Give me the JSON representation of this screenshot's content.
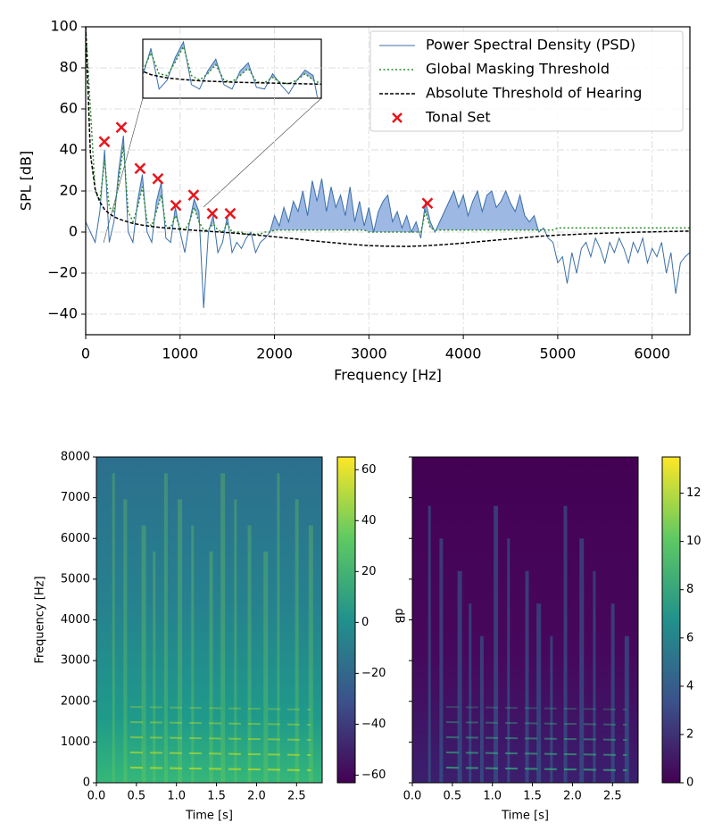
{
  "chart_data": [
    {
      "type": "line",
      "xlabel": "Frequency [Hz]",
      "ylabel": "SPL [dB]",
      "xlim": [
        0,
        6400
      ],
      "xticks": [
        0,
        1000,
        2000,
        3000,
        4000,
        5000,
        6000
      ],
      "ylim": [
        -50,
        100
      ],
      "yticks": [
        {
          "value": -40,
          "label": "−40"
        },
        {
          "value": -20,
          "label": "−20"
        },
        0,
        20,
        40,
        60,
        80,
        100
      ],
      "grid": true,
      "legend": "upper right",
      "fill_above_threshold_color": "#9db8e3",
      "x": [
        0,
        50,
        100,
        150,
        200,
        250,
        300,
        350,
        400,
        450,
        500,
        550,
        600,
        650,
        700,
        750,
        800,
        850,
        900,
        950,
        1000,
        1050,
        1100,
        1150,
        1200,
        1250,
        1300,
        1350,
        1400,
        1450,
        1500,
        1550,
        1600,
        1650,
        1700,
        1750,
        1800,
        1850,
        1900,
        1950,
        2000,
        2050,
        2100,
        2150,
        2200,
        2250,
        2300,
        2350,
        2400,
        2450,
        2500,
        2550,
        2600,
        2650,
        2700,
        2750,
        2800,
        2850,
        2900,
        2950,
        3000,
        3050,
        3100,
        3150,
        3200,
        3250,
        3300,
        3350,
        3400,
        3450,
        3500,
        3550,
        3600,
        3650,
        3700,
        3750,
        3800,
        3850,
        3900,
        3950,
        4000,
        4050,
        4100,
        4150,
        4200,
        4250,
        4300,
        4350,
        4400,
        4450,
        4500,
        4550,
        4600,
        4650,
        4700,
        4750,
        4800,
        4850,
        4900,
        4950,
        5000,
        5050,
        5100,
        5150,
        5200,
        5250,
        5300,
        5350,
        5400,
        5450,
        5500,
        5550,
        5600,
        5650,
        5700,
        5750,
        5800,
        5850,
        5900,
        5950,
        6000,
        6050,
        6100,
        6150,
        6200,
        6250,
        6300,
        6350,
        6400
      ],
      "series": [
        {
          "name": "Power Spectral Density (PSD)",
          "color": "#3b6fa8",
          "style": "solid",
          "values": [
            5,
            0,
            -5,
            10,
            40,
            -5,
            5,
            30,
            47,
            0,
            -5,
            15,
            28,
            0,
            -5,
            15,
            24,
            -3,
            -5,
            12,
            0,
            -10,
            5,
            16,
            10,
            -37,
            0,
            8,
            -10,
            -5,
            8,
            -10,
            -5,
            -8,
            -3,
            0,
            -10,
            -5,
            -3,
            0,
            8,
            3,
            12,
            5,
            15,
            10,
            20,
            8,
            25,
            15,
            26,
            10,
            22,
            12,
            18,
            8,
            22,
            5,
            15,
            3,
            12,
            0,
            10,
            15,
            18,
            5,
            10,
            2,
            8,
            0,
            5,
            -3,
            15,
            5,
            0,
            5,
            10,
            15,
            20,
            12,
            18,
            8,
            15,
            20,
            10,
            18,
            20,
            12,
            15,
            20,
            14,
            10,
            18,
            8,
            5,
            8,
            0,
            2,
            -3,
            -5,
            -15,
            -12,
            -25,
            -10,
            -20,
            -8,
            -5,
            -12,
            -3,
            -8,
            -15,
            -5,
            -10,
            -3,
            -8,
            -15,
            -5,
            -10,
            -3,
            -15,
            -8,
            -12,
            -5,
            -20,
            -10,
            -30,
            -15,
            -12,
            -10
          ]
        },
        {
          "name": "Global Masking Threshold",
          "color": "#2a8a2a",
          "style": "dotted",
          "values": [
            100,
            60,
            20,
            15,
            35,
            12,
            10,
            25,
            42,
            10,
            5,
            12,
            22,
            5,
            3,
            10,
            18,
            3,
            2,
            8,
            2,
            1,
            5,
            12,
            5,
            1,
            1,
            4,
            1,
            0,
            4,
            0,
            0,
            0,
            -1,
            -1,
            -1,
            -1,
            0,
            0,
            1,
            1,
            1,
            1,
            1,
            1,
            1,
            1,
            1,
            1,
            1,
            1,
            1,
            1,
            1,
            1,
            1,
            1,
            1,
            1,
            0,
            0,
            0,
            0,
            0,
            0,
            0,
            0,
            0,
            0,
            0,
            0,
            10,
            2,
            1,
            1,
            1,
            1,
            1,
            1,
            1,
            1,
            1,
            1,
            1,
            1,
            1,
            1,
            1,
            1,
            1,
            1,
            1,
            1,
            1,
            1,
            1,
            1,
            1,
            1,
            2,
            2,
            2,
            2,
            2,
            2,
            2,
            2,
            2,
            2,
            2,
            2,
            2,
            2,
            2,
            2,
            2,
            2,
            2,
            2,
            2,
            2,
            2,
            2,
            2,
            2,
            2,
            2,
            2
          ]
        },
        {
          "name": "Absolute Threshold of Hearing",
          "color": "#000000",
          "style": "dashed",
          "x": [
            0,
            50,
            100,
            150,
            200,
            250,
            300,
            350,
            400,
            500,
            600,
            700,
            800,
            900,
            1000,
            1200,
            1400,
            1600,
            1800,
            2000,
            2200,
            2400,
            2600,
            2800,
            3000,
            3200,
            3400,
            3600,
            3800,
            4000,
            4200,
            4400,
            4600,
            4800,
            5000,
            5200,
            5400,
            5600,
            5800,
            6000,
            6200,
            6400
          ],
          "values": [
            100,
            38,
            21,
            14.6,
            11,
            9,
            7.5,
            6.4,
            5.6,
            4.2,
            3.4,
            2.7,
            2.2,
            1.8,
            1.4,
            0.7,
            0.1,
            -0.6,
            -1.4,
            -2.3,
            -3.2,
            -4.2,
            -5.1,
            -5.9,
            -6.6,
            -6.9,
            -7,
            -6.7,
            -6.1,
            -5.4,
            -4.5,
            -3.7,
            -2.9,
            -2.1,
            -1.5,
            -1.1,
            -0.7,
            -0.4,
            -0.1,
            0.1,
            0.3,
            0.5
          ]
        },
        {
          "name": "Tonal Set",
          "color": "#e8151b",
          "marker": "x",
          "x": [
            198,
            378,
            576,
            765,
            955,
            1143,
            1342,
            1531,
            3620
          ],
          "values": [
            44,
            51,
            31,
            26,
            13,
            18,
            9,
            9,
            14
          ]
        }
      ]
    },
    {
      "type": "spectrogram",
      "xlabel": "Time [s]",
      "ylabel": "Frequency [Hz]",
      "colormap": "viridis",
      "xlim": [
        0,
        2.82
      ],
      "xticks": [
        {
          "value": 0,
          "label": "0.0"
        },
        0.5,
        {
          "value": 1,
          "label": "1.0"
        },
        1.5,
        {
          "value": 2,
          "label": "2.0"
        },
        2.5
      ],
      "ylim": [
        0,
        8000
      ],
      "yticks": [
        0,
        1000,
        2000,
        3000,
        4000,
        5000,
        6000,
        7000,
        8000
      ],
      "ytick_labels": true,
      "colorbar": {
        "lim": [
          -63,
          65
        ],
        "label": "dB",
        "ticks": [
          {
            "value": -60,
            "label": "−60"
          },
          {
            "value": -40,
            "label": "−40"
          },
          {
            "value": -20,
            "label": "−20"
          },
          0,
          20,
          40,
          60
        ]
      }
    },
    {
      "type": "spectrogram",
      "xlabel": "Time [s]",
      "colormap": "viridis",
      "xlim": [
        0,
        2.82
      ],
      "xticks": [
        {
          "value": 0,
          "label": "0.0"
        },
        0.5,
        {
          "value": 1,
          "label": "1.0"
        },
        1.5,
        {
          "value": 2,
          "label": "2.0"
        },
        2.5
      ],
      "ylim": [
        0,
        8000
      ],
      "yticks": [
        0,
        1000,
        2000,
        3000,
        4000,
        5000,
        6000,
        7000,
        8000
      ],
      "ytick_labels": false,
      "colorbar": {
        "lim": [
          0,
          13.5
        ],
        "ticks": [
          0,
          2,
          4,
          6,
          8,
          10,
          12
        ]
      }
    }
  ]
}
